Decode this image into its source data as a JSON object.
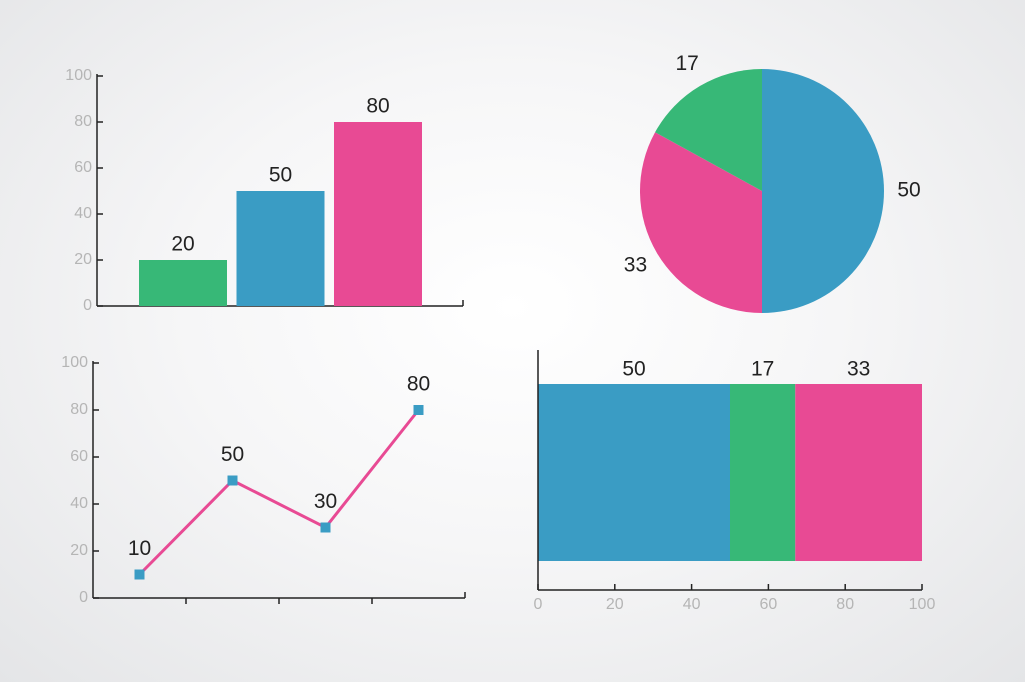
{
  "chart_data": [
    {
      "type": "bar",
      "categories": [
        null,
        null,
        null
      ],
      "values": [
        20,
        50,
        80
      ],
      "colors": [
        "#37b877",
        "#3a9cc4",
        "#e84a94"
      ],
      "ylim": [
        0,
        100
      ],
      "yticks": [
        0,
        20,
        40,
        60,
        80,
        100
      ]
    },
    {
      "type": "pie",
      "values": [
        50,
        33,
        17
      ],
      "colors": [
        "#3a9cc4",
        "#e84a94",
        "#37b877"
      ]
    },
    {
      "type": "line",
      "categories": [
        null,
        null,
        null,
        null
      ],
      "values": [
        10,
        50,
        30,
        80
      ],
      "color": "#e84a94",
      "marker_color": "#3a9cc4",
      "ylim": [
        0,
        100
      ],
      "yticks": [
        0,
        20,
        40,
        60,
        80,
        100
      ]
    },
    {
      "type": "stacked-bar",
      "orientation": "horizontal",
      "series": [
        {
          "color": "#3a9cc4",
          "values": [
            50
          ]
        },
        {
          "color": "#37b877",
          "values": [
            17
          ]
        },
        {
          "color": "#e84a94",
          "values": [
            33
          ]
        }
      ],
      "xlim": [
        0,
        100
      ],
      "xticks": [
        0,
        20,
        40,
        60,
        80,
        100
      ]
    }
  ]
}
